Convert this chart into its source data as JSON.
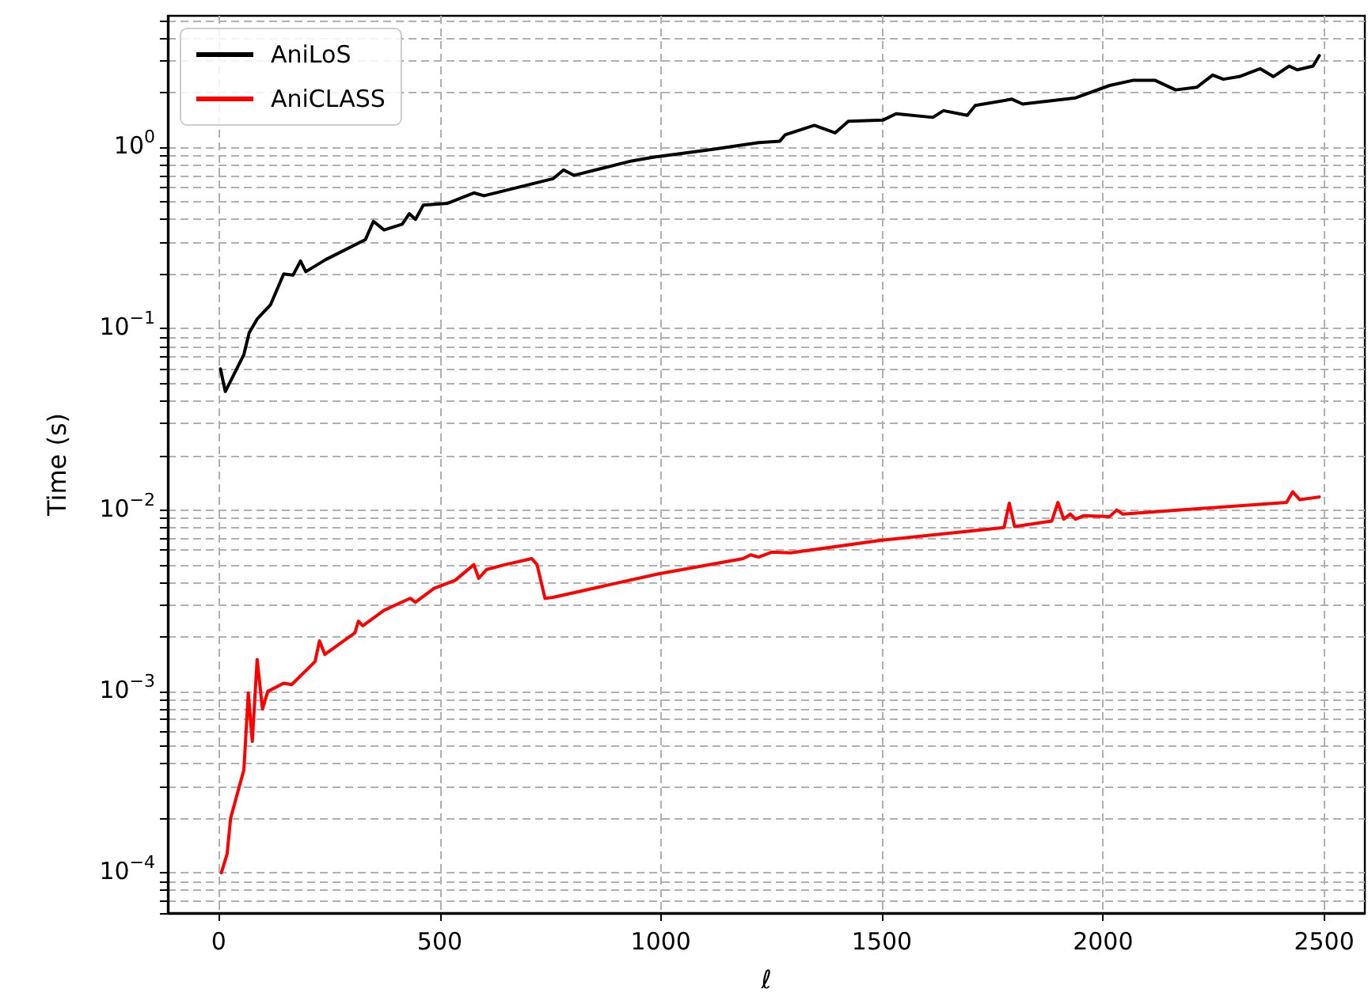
{
  "chart_data": {
    "type": "line",
    "xlabel": "ℓ",
    "ylabel": "Time (s)",
    "log": "y",
    "grid": true,
    "legend": "top left",
    "line_style": "solid",
    "marker": "none",
    "xlim": [
      -115,
      2592
    ],
    "xticks": [
      0,
      500,
      1000,
      1500,
      2000,
      2500
    ],
    "ylim": [
      6e-05,
      5.3
    ],
    "yticks": [
      {
        "value": 6e-05,
        "label": null
      },
      {
        "value": 7e-05,
        "label": null
      },
      {
        "value": 8e-05,
        "label": null
      },
      {
        "value": 9e-05,
        "label": null
      },
      {
        "value": 0.0001,
        "label": "10$^{−4}$"
      },
      {
        "value": 0.0002,
        "label": null
      },
      {
        "value": 0.0003,
        "label": null
      },
      {
        "value": 0.0004,
        "label": null
      },
      {
        "value": 0.0005,
        "label": null
      },
      {
        "value": 0.0006,
        "label": null
      },
      {
        "value": 0.0007,
        "label": null
      },
      {
        "value": 0.0008,
        "label": null
      },
      {
        "value": 0.0009,
        "label": null
      },
      {
        "value": 0.001,
        "label": "10$^{−3}$"
      },
      {
        "value": 0.002,
        "label": null
      },
      {
        "value": 0.003,
        "label": null
      },
      {
        "value": 0.004,
        "label": null
      },
      {
        "value": 0.005,
        "label": null
      },
      {
        "value": 0.006,
        "label": null
      },
      {
        "value": 0.007,
        "label": null
      },
      {
        "value": 0.008,
        "label": null
      },
      {
        "value": 0.009,
        "label": null
      },
      {
        "value": 0.01,
        "label": "10$^{−2}$"
      },
      {
        "value": 0.02,
        "label": null
      },
      {
        "value": 0.03,
        "label": null
      },
      {
        "value": 0.04,
        "label": null
      },
      {
        "value": 0.05,
        "label": null
      },
      {
        "value": 0.06,
        "label": null
      },
      {
        "value": 0.07,
        "label": null
      },
      {
        "value": 0.08,
        "label": null
      },
      {
        "value": 0.09,
        "label": null
      },
      {
        "value": 0.1,
        "label": "10$^{−1}$"
      },
      {
        "value": 0.2,
        "label": null
      },
      {
        "value": 0.3,
        "label": null
      },
      {
        "value": 0.4,
        "label": null
      },
      {
        "value": 0.5,
        "label": null
      },
      {
        "value": 0.6,
        "label": null
      },
      {
        "value": 0.7,
        "label": null
      },
      {
        "value": 0.8,
        "label": null
      },
      {
        "value": 0.9,
        "label": null
      },
      {
        "value": 1,
        "label": "10$^{0}$"
      },
      {
        "value": 2,
        "label": null
      },
      {
        "value": 3,
        "label": null
      },
      {
        "value": 4,
        "label": null
      },
      {
        "value": 5,
        "label": null
      }
    ],
    "series": [
      {
        "name": "AniLoS",
        "color": "#000000",
        "x": [
          4,
          15,
          57,
          69,
          87,
          117,
          147,
          168,
          185,
          197,
          242,
          332,
          350,
          374,
          415,
          431,
          445,
          463,
          517,
          577,
          600,
          756,
          780,
          803,
          934,
          982,
          1114,
          1221,
          1269,
          1281,
          1347,
          1394,
          1424,
          1502,
          1532,
          1615,
          1639,
          1693,
          1711,
          1794,
          1818,
          1938,
          2015,
          2069,
          2117,
          2164,
          2212,
          2248,
          2272,
          2308,
          2355,
          2385,
          2421,
          2439,
          2475,
          2489
        ],
        "values": [
          0.06,
          0.045,
          0.072,
          0.095,
          0.113,
          0.135,
          0.2,
          0.197,
          0.236,
          0.206,
          0.24,
          0.31,
          0.39,
          0.35,
          0.376,
          0.43,
          0.4,
          0.48,
          0.49,
          0.56,
          0.54,
          0.67,
          0.75,
          0.7,
          0.84,
          0.88,
          0.97,
          1.06,
          1.08,
          1.17,
          1.32,
          1.2,
          1.39,
          1.41,
          1.53,
          1.46,
          1.59,
          1.5,
          1.7,
          1.84,
          1.73,
          1.87,
          2.19,
          2.34,
          2.34,
          2.07,
          2.14,
          2.5,
          2.37,
          2.45,
          2.71,
          2.45,
          2.8,
          2.67,
          2.8,
          3.2
        ]
      },
      {
        "name": "AniCLASS",
        "color": "#ff0000",
        "x": [
          6,
          19,
          27,
          57,
          67,
          76,
          87,
          99,
          111,
          147,
          165,
          218,
          228,
          240,
          308,
          316,
          326,
          374,
          433,
          445,
          487,
          535,
          577,
          588,
          606,
          648,
          708,
          720,
          738,
          756,
          995,
          1186,
          1203,
          1221,
          1251,
          1293,
          1496,
          1776,
          1788,
          1800,
          1884,
          1898,
          1911,
          1926,
          1938,
          1956,
          2015,
          2031,
          2045,
          2415,
          2429,
          2445,
          2489
        ],
        "values": [
          0.0001,
          0.000127,
          0.0002,
          0.00037,
          0.00098,
          0.00053,
          0.0015,
          0.0008,
          0.001,
          0.00111,
          0.00109,
          0.00146,
          0.0019,
          0.0016,
          0.0021,
          0.00244,
          0.0023,
          0.0028,
          0.00326,
          0.0031,
          0.0037,
          0.0041,
          0.005,
          0.0042,
          0.0047,
          0.005,
          0.0054,
          0.005,
          0.00326,
          0.0033,
          0.00445,
          0.0054,
          0.00566,
          0.0055,
          0.00586,
          0.0058,
          0.0068,
          0.008,
          0.0109,
          0.0081,
          0.0087,
          0.011,
          0.0089,
          0.0095,
          0.0089,
          0.0093,
          0.0092,
          0.01,
          0.0095,
          0.011,
          0.0126,
          0.0114,
          0.0118
        ]
      }
    ]
  }
}
